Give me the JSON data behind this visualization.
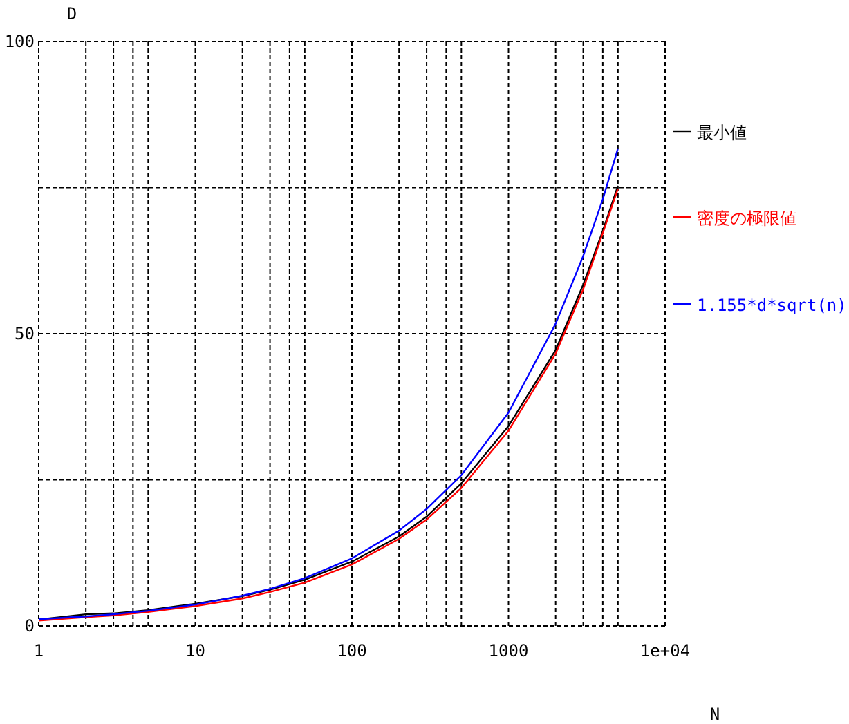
{
  "chart_data": {
    "type": "line",
    "xlabel": "N",
    "ylabel": "D",
    "log": "x",
    "grid": true,
    "legend": "right",
    "xlim": [
      1,
      10000
    ],
    "ylim": [
      0,
      100
    ],
    "xticks": [
      1,
      {
        "value": 2,
        "label": null
      },
      {
        "value": 3,
        "label": null
      },
      {
        "value": 4,
        "label": null
      },
      {
        "value": 5,
        "label": null
      },
      10,
      {
        "value": 20,
        "label": null
      },
      {
        "value": 30,
        "label": null
      },
      {
        "value": 40,
        "label": null
      },
      {
        "value": 50,
        "label": null
      },
      100,
      {
        "value": 200,
        "label": null
      },
      {
        "value": 300,
        "label": null
      },
      {
        "value": 400,
        "label": null
      },
      {
        "value": 500,
        "label": null
      },
      1000,
      {
        "value": 2000,
        "label": null
      },
      {
        "value": 3000,
        "label": null
      },
      {
        "value": 4000,
        "label": null
      },
      {
        "value": 5000,
        "label": null
      },
      {
        "value": 10000,
        "label": "1e+04"
      }
    ],
    "yticks": [
      0,
      {
        "value": 25,
        "label": null
      },
      50,
      {
        "value": 75,
        "label": null
      },
      100
    ],
    "x": [
      1,
      2,
      3,
      5,
      10,
      20,
      30,
      50,
      100,
      200,
      300,
      500,
      1000,
      2000,
      3000,
      4000,
      5000
    ],
    "series": [
      {
        "name": "最小値",
        "color": "#000000",
        "values": [
          1.1,
          2.0,
          2.15,
          2.7,
          3.8,
          5.1,
          6.2,
          7.9,
          11.0,
          15.3,
          18.7,
          24.4,
          34.2,
          47.2,
          58.4,
          67.6,
          75.3
        ]
      },
      {
        "name": "密度の極限値",
        "color": "#ff0000",
        "values": [
          0.9,
          1.5,
          1.8,
          2.4,
          3.4,
          4.7,
          5.8,
          7.4,
          10.5,
          14.9,
          18.2,
          23.6,
          33.4,
          46.6,
          57.6,
          67.2,
          74.8
        ]
      },
      {
        "name": "1.155*d*sqrt(n)",
        "color": "#0000ff",
        "values": [
          1.16,
          1.63,
          2.0,
          2.58,
          3.65,
          5.17,
          6.33,
          8.17,
          11.55,
          16.3,
          20.0,
          25.8,
          36.5,
          51.7,
          63.3,
          73.0,
          81.7
        ]
      }
    ]
  }
}
